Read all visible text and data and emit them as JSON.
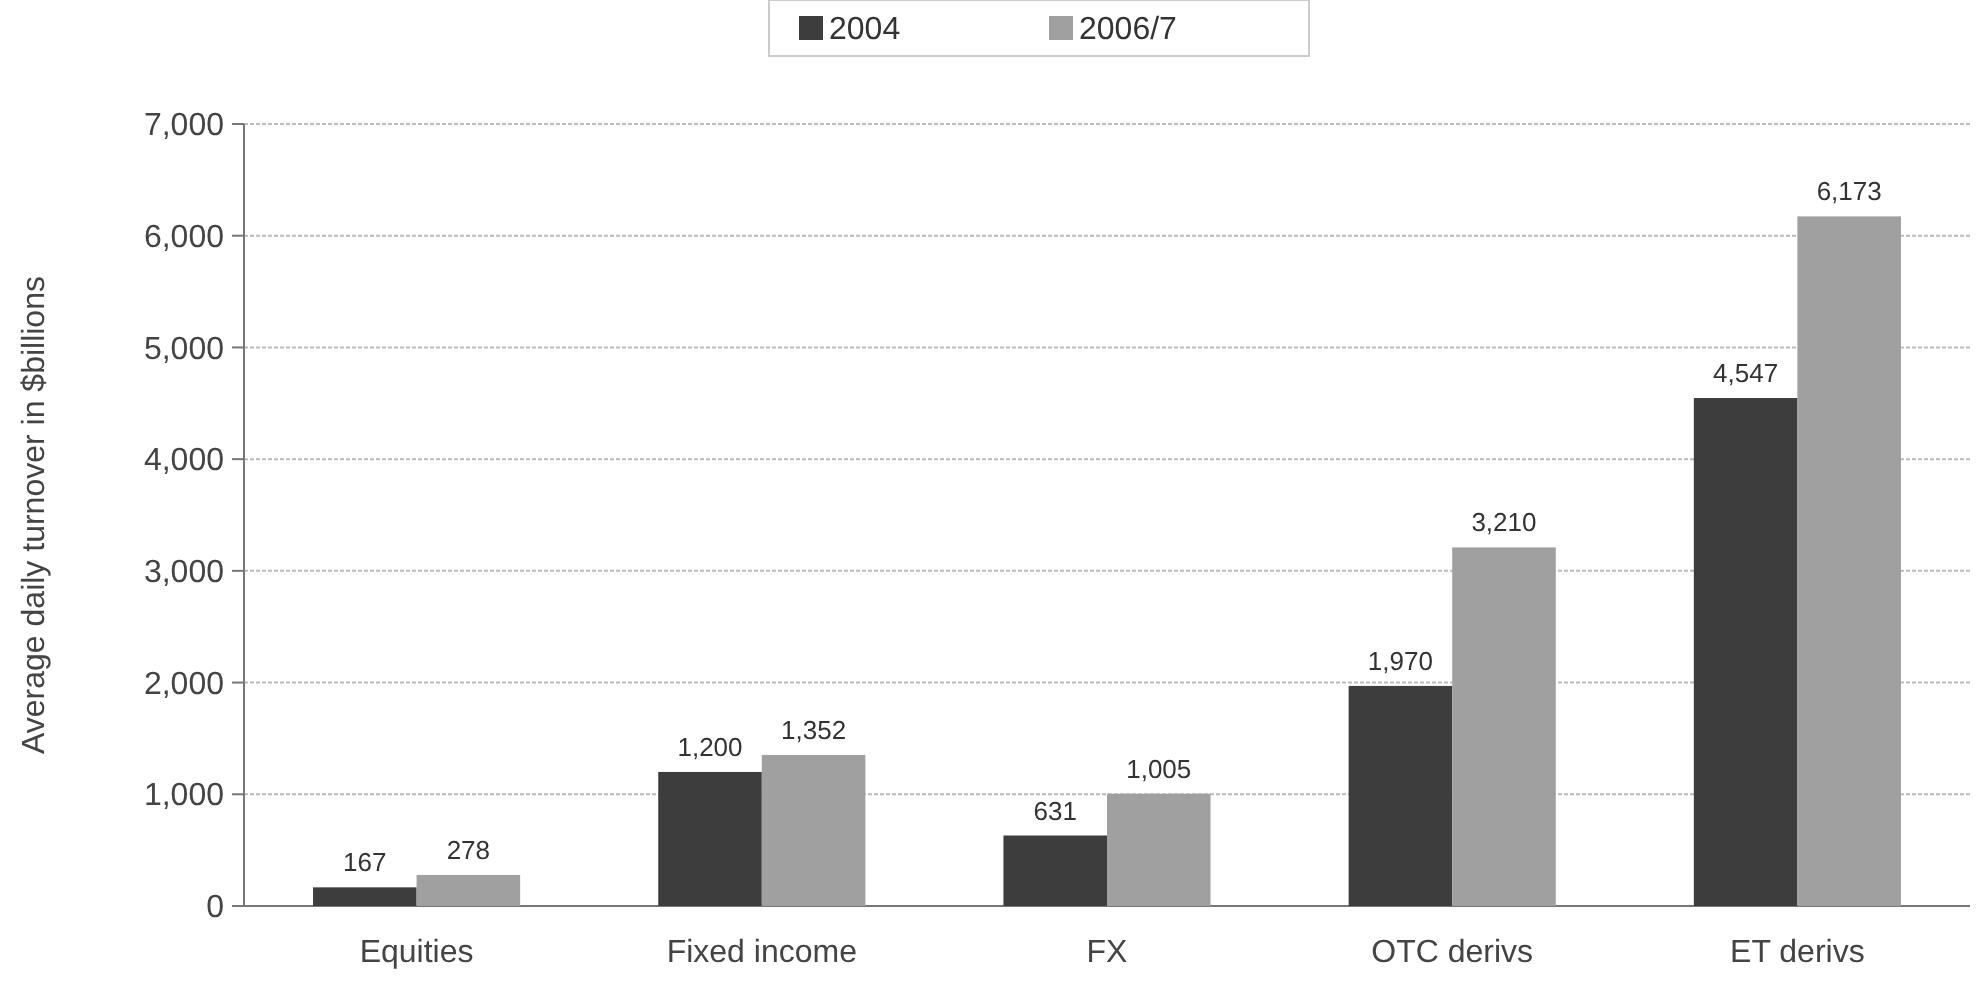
{
  "chart_data": {
    "type": "bar",
    "ylabel": "Average daily turnover in $billions",
    "categories": [
      "Equities",
      "Fixed income",
      "FX",
      "OTC derivs",
      "ET derivs"
    ],
    "series": [
      {
        "name": "2004",
        "color": "#3d3d3d",
        "values": [
          167,
          1200,
          631,
          1970,
          4547
        ],
        "value_labels": [
          "167",
          "1,200",
          "631",
          "1,970",
          "4,547"
        ]
      },
      {
        "name": "2006/7",
        "color": "#a0a0a0",
        "values": [
          278,
          1352,
          1005,
          3210,
          6173
        ],
        "value_labels": [
          "278",
          "1,352",
          "1,005",
          "3,210",
          "6,173"
        ]
      }
    ],
    "ylim": [
      0,
      7000
    ],
    "yticks": [
      {
        "value": 0,
        "label": "0"
      },
      {
        "value": 1000,
        "label": "1,000"
      },
      {
        "value": 2000,
        "label": "2,000"
      },
      {
        "value": 3000,
        "label": "3,000"
      },
      {
        "value": 4000,
        "label": "4,000"
      },
      {
        "value": 5000,
        "label": "5,000"
      },
      {
        "value": 6000,
        "label": "6,000"
      },
      {
        "value": 7000,
        "label": "7,000"
      }
    ],
    "grid": "y",
    "legend": "top"
  }
}
